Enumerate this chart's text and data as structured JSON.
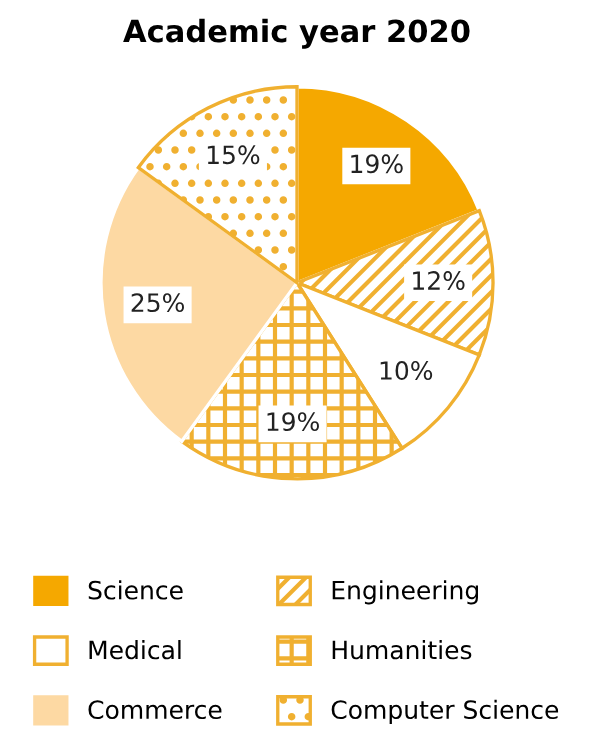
{
  "chart_data": {
    "type": "pie",
    "title": "Academic year 2020",
    "categories": [
      "Science",
      "Engineering",
      "Medical",
      "Humanities",
      "Commerce",
      "Computer Science"
    ],
    "values": [
      19,
      12,
      10,
      19,
      25,
      15
    ],
    "colors": [
      "#f5a800",
      "#f0b030",
      "#f0b030",
      "#f0b030",
      "#fdd9a3",
      "#f0b030"
    ],
    "value_labels": [
      "19%",
      "12%",
      "10%",
      "19%",
      "25%",
      "15%"
    ],
    "legend": "bottom"
  }
}
